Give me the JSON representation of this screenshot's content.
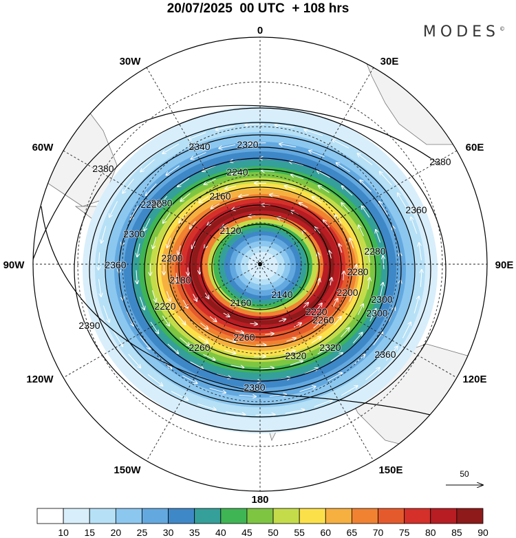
{
  "header": {
    "title": "20/07/2025  00 UTC  + 108 hrs",
    "brand": "MODES",
    "brand_mark": "©"
  },
  "map": {
    "projection": "south-polar-stereographic",
    "longitude_labels": {
      "top": "0",
      "top_right": "30E",
      "right_upper": "60E",
      "right": "90E",
      "right_lower": "120E",
      "bottom_right": "150E",
      "bottom": "180",
      "bottom_left": "150W",
      "left_lower": "120W",
      "left": "90W",
      "left_upper": "60W",
      "top_left": "30W"
    },
    "contour_labels": [
      "2380",
      "2380",
      "2360",
      "2360",
      "2340",
      "2320",
      "2320",
      "2300",
      "2300",
      "2280",
      "2260",
      "2240",
      "2220",
      "2220",
      "2200",
      "2180",
      "2160",
      "2160",
      "2140",
      "2120",
      "2390",
      "2380",
      "2260",
      "2280",
      "2260",
      "2200",
      "2280",
      "2320",
      "2360",
      "2300",
      "2220"
    ],
    "wind_speed_unit_hint": "m/s",
    "reference_vector_label": "50"
  },
  "colorbar": {
    "ticks": [
      "10",
      "15",
      "20",
      "25",
      "30",
      "35",
      "40",
      "45",
      "50",
      "55",
      "60",
      "65",
      "70",
      "75",
      "80",
      "85",
      "90"
    ],
    "colors": [
      "#ffffff",
      "#d8eefb",
      "#b6e0f6",
      "#8cc7ef",
      "#63a9e0",
      "#3f88c8",
      "#35a09a",
      "#3fb554",
      "#7ec642",
      "#c5dc4a",
      "#fbe04a",
      "#f6b040",
      "#f08232",
      "#e55a2c",
      "#d5302a",
      "#b81d24",
      "#8e1a1a"
    ]
  }
}
